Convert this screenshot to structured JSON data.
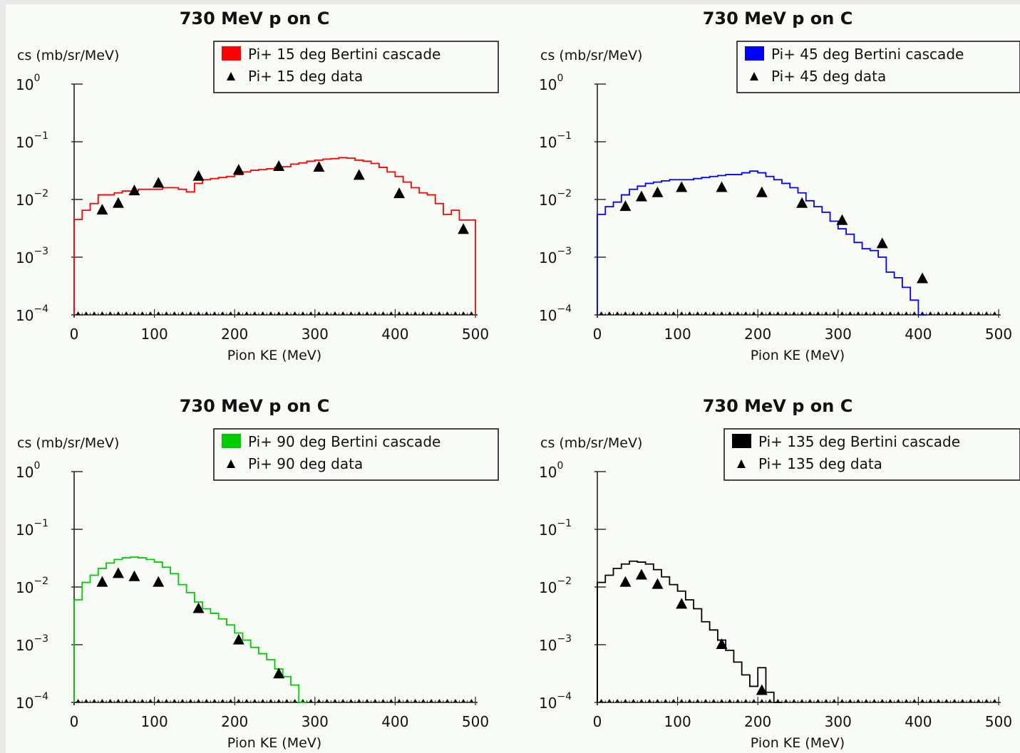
{
  "chart_data": [
    {
      "type": "line",
      "title": "730 MeV p on C",
      "ylabel": "cs (mb/sr/MeV)",
      "xlabel": "Pion KE (MeV)",
      "xlim": [
        0,
        500
      ],
      "ylim": [
        0.0001,
        1
      ],
      "yscale": "log",
      "x_ticks": [
        "0",
        "100",
        "200",
        "300",
        "400",
        "500"
      ],
      "legend_position": "top-right",
      "series": [
        {
          "name": "Pi+ 15 deg Bertini cascade",
          "kind": "histogram",
          "color": "#ff0000",
          "bin_width": 10,
          "values": [
            0.0045,
            0.0065,
            0.0085,
            0.012,
            0.012,
            0.013,
            0.014,
            0.014,
            0.015,
            0.015,
            0.015,
            0.016,
            0.016,
            0.015,
            0.0135,
            0.019,
            0.022,
            0.023,
            0.024,
            0.025,
            0.027,
            0.03,
            0.032,
            0.033,
            0.034,
            0.036,
            0.037,
            0.041,
            0.043,
            0.046,
            0.048,
            0.05,
            0.051,
            0.053,
            0.052,
            0.048,
            0.046,
            0.042,
            0.036,
            0.03,
            0.025,
            0.02,
            0.016,
            0.013,
            0.012,
            0.0085,
            0.0055,
            0.0065,
            0.0044,
            0.0044
          ]
        },
        {
          "name": "Pi+ 15 deg data",
          "kind": "points",
          "x": [
            35,
            55,
            75,
            105,
            155,
            205,
            255,
            305,
            355,
            405,
            485
          ],
          "y": [
            0.0065,
            0.0085,
            0.014,
            0.019,
            0.025,
            0.032,
            0.037,
            0.036,
            0.026,
            0.0125,
            0.003
          ]
        }
      ]
    },
    {
      "type": "line",
      "title": "730 MeV p on C",
      "ylabel": "cs (mb/sr/MeV)",
      "xlabel": "Pion KE (MeV)",
      "xlim": [
        0,
        500
      ],
      "ylim": [
        0.0001,
        1
      ],
      "yscale": "log",
      "x_ticks": [
        "0",
        "100",
        "200",
        "300",
        "400",
        "500"
      ],
      "legend_position": "top-right",
      "series": [
        {
          "name": "Pi+ 45 deg Bertini cascade",
          "kind": "histogram",
          "color": "#0000ff",
          "bin_width": 10,
          "values": [
            0.0055,
            0.0075,
            0.009,
            0.012,
            0.015,
            0.017,
            0.019,
            0.02,
            0.021,
            0.022,
            0.022,
            0.022,
            0.023,
            0.024,
            0.025,
            0.026,
            0.027,
            0.027,
            0.029,
            0.031,
            0.029,
            0.025,
            0.022,
            0.019,
            0.016,
            0.013,
            0.0095,
            0.0075,
            0.006,
            0.0042,
            0.0031,
            0.0025,
            0.0018,
            0.0014,
            0.0013,
            0.001,
            0.00055,
            0.00044,
            0.0003,
            0.00018,
            0.0001
          ]
        },
        {
          "name": "Pi+ 45 deg data",
          "kind": "points",
          "x": [
            35,
            55,
            75,
            105,
            155,
            205,
            255,
            305,
            355,
            405
          ],
          "y": [
            0.0075,
            0.011,
            0.013,
            0.016,
            0.016,
            0.013,
            0.0085,
            0.0043,
            0.0017,
            0.00042
          ]
        }
      ]
    },
    {
      "type": "line",
      "title": "730 MeV p on C",
      "ylabel": "cs (mb/sr/MeV)",
      "xlabel": "Pion KE (MeV)",
      "xlim": [
        0,
        500
      ],
      "ylim": [
        0.0001,
        1
      ],
      "yscale": "log",
      "x_ticks": [
        "0",
        "100",
        "200",
        "300",
        "400",
        "500"
      ],
      "legend_position": "top-right",
      "series": [
        {
          "name": "Pi+ 90 deg Bertini cascade",
          "kind": "histogram",
          "color": "#00cc00",
          "bin_width": 10,
          "values": [
            0.006,
            0.012,
            0.016,
            0.021,
            0.026,
            0.03,
            0.032,
            0.033,
            0.032,
            0.03,
            0.027,
            0.022,
            0.017,
            0.011,
            0.008,
            0.0055,
            0.0042,
            0.0035,
            0.0028,
            0.0022,
            0.0016,
            0.0012,
            0.0009,
            0.0007,
            0.00055,
            0.00038,
            0.00028,
            0.0002,
            0.0001
          ]
        },
        {
          "name": "Pi+ 90 deg data",
          "kind": "points",
          "x": [
            35,
            55,
            75,
            105,
            155,
            205,
            255
          ],
          "y": [
            0.012,
            0.017,
            0.015,
            0.012,
            0.0042,
            0.0012,
            0.00031
          ]
        }
      ]
    },
    {
      "type": "line",
      "title": "730 MeV p on C",
      "ylabel": "cs (mb/sr/MeV)",
      "xlabel": "Pion KE (MeV)",
      "xlim": [
        0,
        500
      ],
      "ylim": [
        0.0001,
        1
      ],
      "yscale": "log",
      "x_ticks": [
        "0",
        "100",
        "200",
        "300",
        "400",
        "500"
      ],
      "legend_position": "top-right",
      "series": [
        {
          "name": "Pi+ 135 deg Bertini cascade",
          "kind": "histogram",
          "color": "#000000",
          "bin_width": 10,
          "values": [
            0.012,
            0.016,
            0.021,
            0.025,
            0.028,
            0.027,
            0.025,
            0.02,
            0.015,
            0.011,
            0.0085,
            0.006,
            0.0042,
            0.0025,
            0.0018,
            0.0012,
            0.0008,
            0.0005,
            0.0003,
            0.00019,
            0.0004,
            0.00015,
            0.0001
          ]
        },
        {
          "name": "Pi+ 135 deg data",
          "kind": "points",
          "x": [
            35,
            55,
            75,
            105,
            155,
            205
          ],
          "y": [
            0.012,
            0.016,
            0.011,
            0.005,
            0.001,
            0.00016
          ]
        }
      ]
    }
  ]
}
